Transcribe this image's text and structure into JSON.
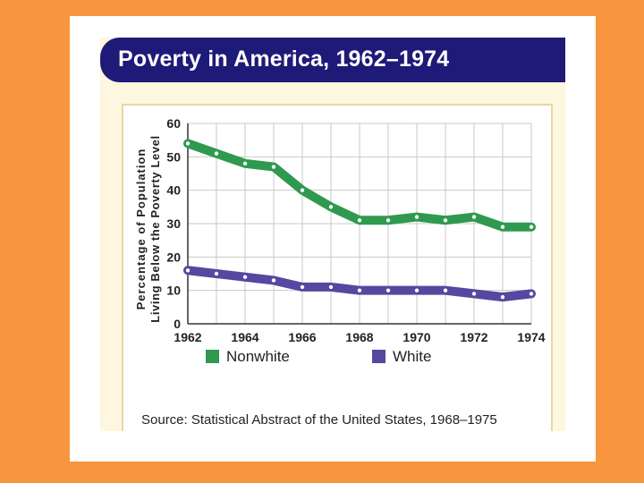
{
  "colors": {
    "background": "#F7963E",
    "slide": "#FFFFFF",
    "figure_bg": "#FEF6DF",
    "title_bar": "#1E1A78",
    "grid": "#C9C9C9",
    "nonwhite": "#2F9A4F",
    "white_series": "#5647A0"
  },
  "figure": {
    "title": "Poverty in America, 1962–1974",
    "source": "Source: Statistical Abstract of the United States, 1968–1975"
  },
  "chart_data": {
    "type": "line",
    "title": "Poverty in America, 1962–1974",
    "xlabel": "",
    "ylabel_lines": [
      "Percentage of Population",
      "Living Below the Poverty Level"
    ],
    "x": [
      1962,
      1963,
      1964,
      1965,
      1966,
      1967,
      1968,
      1969,
      1970,
      1971,
      1972,
      1973,
      1974
    ],
    "x_tick_labels": [
      "1962",
      "1964",
      "1966",
      "1968",
      "1970",
      "1972",
      "1974"
    ],
    "y_tick_labels": [
      "0",
      "10",
      "20",
      "30",
      "40",
      "50",
      "60"
    ],
    "xlim": [
      1962,
      1974
    ],
    "ylim": [
      0,
      60
    ],
    "grid": true,
    "legend_position": "bottom",
    "series": [
      {
        "name": "Nonwhite",
        "color": "#2F9A4F",
        "values": [
          54,
          51,
          48,
          47,
          40,
          35,
          31,
          31,
          32,
          31,
          32,
          29,
          29
        ]
      },
      {
        "name": "White",
        "color": "#5647A0",
        "values": [
          16,
          15,
          14,
          13,
          11,
          11,
          10,
          10,
          10,
          10,
          9,
          8,
          9
        ]
      }
    ]
  }
}
